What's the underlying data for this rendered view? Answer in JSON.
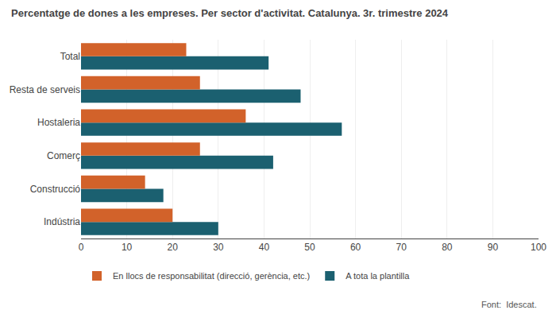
{
  "chart_data": {
    "type": "bar",
    "orientation": "horizontal",
    "title": "Percentatge de dones a les empreses. Per sector d'activitat. Catalunya. 3r. trimestre 2024",
    "categories": [
      "Indústria",
      "Construcció",
      "Comerç",
      "Hostaleria",
      "Resta de serveis",
      "Total"
    ],
    "series": [
      {
        "name": "En llocs de responsabilitat (direcció, gerència, etc.)",
        "color": "#D2622A",
        "values": [
          20,
          14,
          26,
          36,
          26,
          23
        ]
      },
      {
        "name": "A tota la plantilla",
        "color": "#1B6070",
        "values": [
          30,
          18,
          42,
          57,
          48,
          41
        ]
      }
    ],
    "xlim": [
      0,
      100
    ],
    "xticks": [
      0,
      10,
      20,
      30,
      40,
      50,
      60,
      70,
      80,
      90,
      100
    ],
    "grid": true,
    "legend": "bottom",
    "annotations": [
      "Font:  Idescat."
    ]
  }
}
